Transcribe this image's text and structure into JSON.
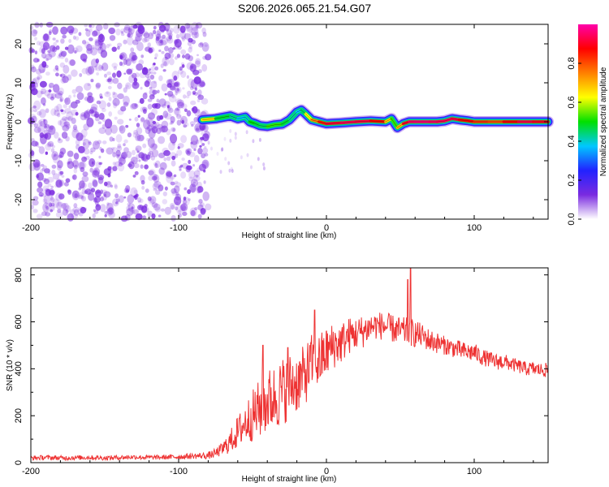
{
  "title": "S206.2026.065.21.54.G07",
  "chart_data": [
    {
      "type": "heatmap",
      "name": "spectrogram",
      "xlabel": "Height of straight line (km)",
      "ylabel": "Frequency (Hz)",
      "xlim": [
        -200,
        150
      ],
      "ylim": [
        -25,
        25
      ],
      "xticks": [
        -200,
        -100,
        0,
        100
      ],
      "yticks": [
        -20,
        -10,
        0,
        10,
        20
      ],
      "colorbar": {
        "label": "Normalized spectral amplitude",
        "range": [
          0,
          1
        ],
        "ticks": [
          "0.0",
          "0.2",
          "0.4",
          "0.6",
          "0.8"
        ],
        "tick_values": [
          0.0,
          0.2,
          0.4,
          0.6,
          0.8
        ],
        "colors": [
          "#ffffff",
          "#7a2be0",
          "#2222ff",
          "#00c8ff",
          "#00e000",
          "#ffff00",
          "#ff8000",
          "#ff0000",
          "#ff00aa"
        ]
      },
      "noise_region": {
        "x_from": -200,
        "x_to": -80,
        "freq_from": -25,
        "freq_to": 25,
        "color": "#7a2be0"
      },
      "ridge": {
        "x": [
          -84,
          -75,
          -65,
          -60,
          -55,
          -52,
          -48,
          -45,
          -40,
          -35,
          -30,
          -25,
          -20,
          -17,
          -14,
          -10,
          -5,
          0,
          10,
          20,
          30,
          40,
          44,
          48,
          52,
          56,
          60,
          65,
          70,
          75,
          80,
          85,
          90,
          95,
          100,
          110,
          120,
          130,
          140,
          150
        ],
        "freq": [
          0.5,
          0.8,
          1.5,
          0.8,
          1.2,
          0.0,
          -0.5,
          -1.0,
          -1.2,
          -0.8,
          -0.6,
          0.5,
          2.5,
          3.0,
          2.0,
          0.5,
          0.0,
          -0.5,
          -0.3,
          0.0,
          0.2,
          0.0,
          0.8,
          -1.5,
          -0.5,
          0.0,
          0.0,
          0.0,
          0.0,
          0.0,
          0.2,
          0.8,
          0.5,
          0.3,
          0.0,
          0.0,
          0.0,
          0.0,
          0.0,
          0.0
        ],
        "amplitude": [
          0.8,
          0.5,
          0.45,
          0.4,
          0.35,
          0.45,
          0.55,
          0.4,
          0.5,
          0.55,
          0.5,
          0.45,
          0.4,
          0.35,
          0.55,
          0.7,
          0.8,
          0.9,
          0.92,
          0.95,
          0.9,
          0.85,
          0.5,
          0.55,
          0.85,
          0.95,
          0.95,
          0.97,
          0.95,
          0.95,
          0.93,
          0.95,
          0.9,
          0.85,
          0.9,
          0.75,
          0.85,
          0.9,
          0.95,
          0.85
        ]
      }
    },
    {
      "type": "line",
      "name": "snr",
      "xlabel": "Height of straight line (km)",
      "ylabel": "SNR (10 * v/v)",
      "xlim": [
        -200,
        150
      ],
      "ylim": [
        0,
        830
      ],
      "xticks": [
        -200,
        -100,
        0,
        100
      ],
      "yticks": [
        0,
        200,
        400,
        600,
        800
      ],
      "color": "#ee3333",
      "series": [
        {
          "name": "SNR",
          "x": [
            -200,
            -190,
            -180,
            -170,
            -160,
            -150,
            -140,
            -130,
            -120,
            -110,
            -100,
            -90,
            -80,
            -75,
            -70,
            -65,
            -60,
            -55,
            -50,
            -45,
            -40,
            -35,
            -30,
            -25,
            -20,
            -15,
            -10,
            -5,
            0,
            5,
            10,
            15,
            20,
            25,
            30,
            35,
            40,
            45,
            50,
            55,
            60,
            65,
            70,
            75,
            80,
            85,
            90,
            95,
            100,
            105,
            110,
            115,
            120,
            125,
            130,
            135,
            140,
            145,
            150
          ],
          "values": [
            20,
            22,
            20,
            21,
            22,
            20,
            22,
            24,
            22,
            23,
            25,
            28,
            30,
            40,
            60,
            90,
            130,
            170,
            200,
            230,
            260,
            280,
            300,
            330,
            340,
            370,
            420,
            430,
            470,
            500,
            510,
            540,
            550,
            560,
            580,
            585,
            580,
            570,
            560,
            560,
            550,
            540,
            520,
            510,
            500,
            490,
            480,
            470,
            470,
            450,
            440,
            430,
            430,
            420,
            410,
            400,
            400,
            395,
            395
          ],
          "spread": [
            10,
            10,
            10,
            10,
            10,
            10,
            10,
            10,
            10,
            10,
            12,
            12,
            15,
            20,
            30,
            50,
            70,
            90,
            110,
            130,
            140,
            140,
            150,
            140,
            130,
            130,
            130,
            120,
            110,
            100,
            90,
            80,
            70,
            70,
            60,
            60,
            60,
            60,
            60,
            60,
            60,
            50,
            50,
            45,
            40,
            40,
            40,
            40,
            40,
            35,
            35,
            35,
            35,
            30,
            30,
            30,
            30,
            30,
            30
          ],
          "peaks": [
            {
              "x": -43,
              "value": 500
            },
            {
              "x": -26,
              "value": 490
            },
            {
              "x": -8,
              "value": 650
            },
            {
              "x": 57,
              "value": 830
            },
            {
              "x": 55,
              "value": 780
            }
          ]
        }
      ]
    }
  ]
}
